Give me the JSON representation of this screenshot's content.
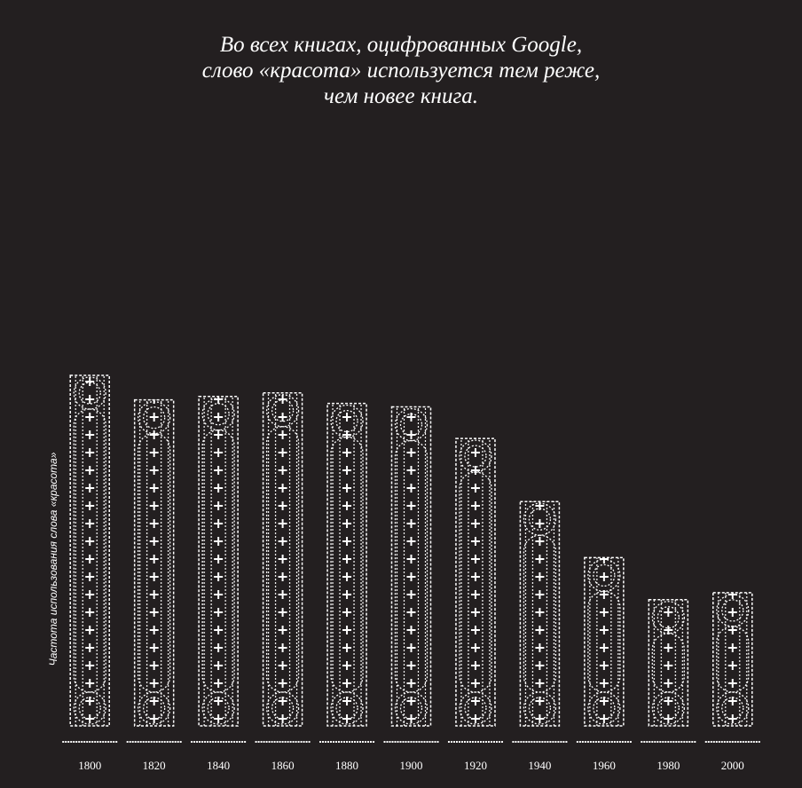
{
  "chart_data": {
    "type": "bar",
    "title": "Во всех книгах, оцифрованных Google,\nслово «красота» используется тем реже,\nчем новее книга.",
    "y_label": "Частота использования слова «красота»",
    "categories": [
      "1800",
      "1820",
      "1840",
      "1860",
      "1880",
      "1900",
      "1920",
      "1940",
      "1960",
      "1980",
      "2000"
    ],
    "values": [
      100,
      93,
      94,
      95,
      92,
      91,
      82,
      64,
      48,
      36,
      38
    ],
    "color": "#ffffff",
    "ylim": [
      0,
      100
    ]
  }
}
